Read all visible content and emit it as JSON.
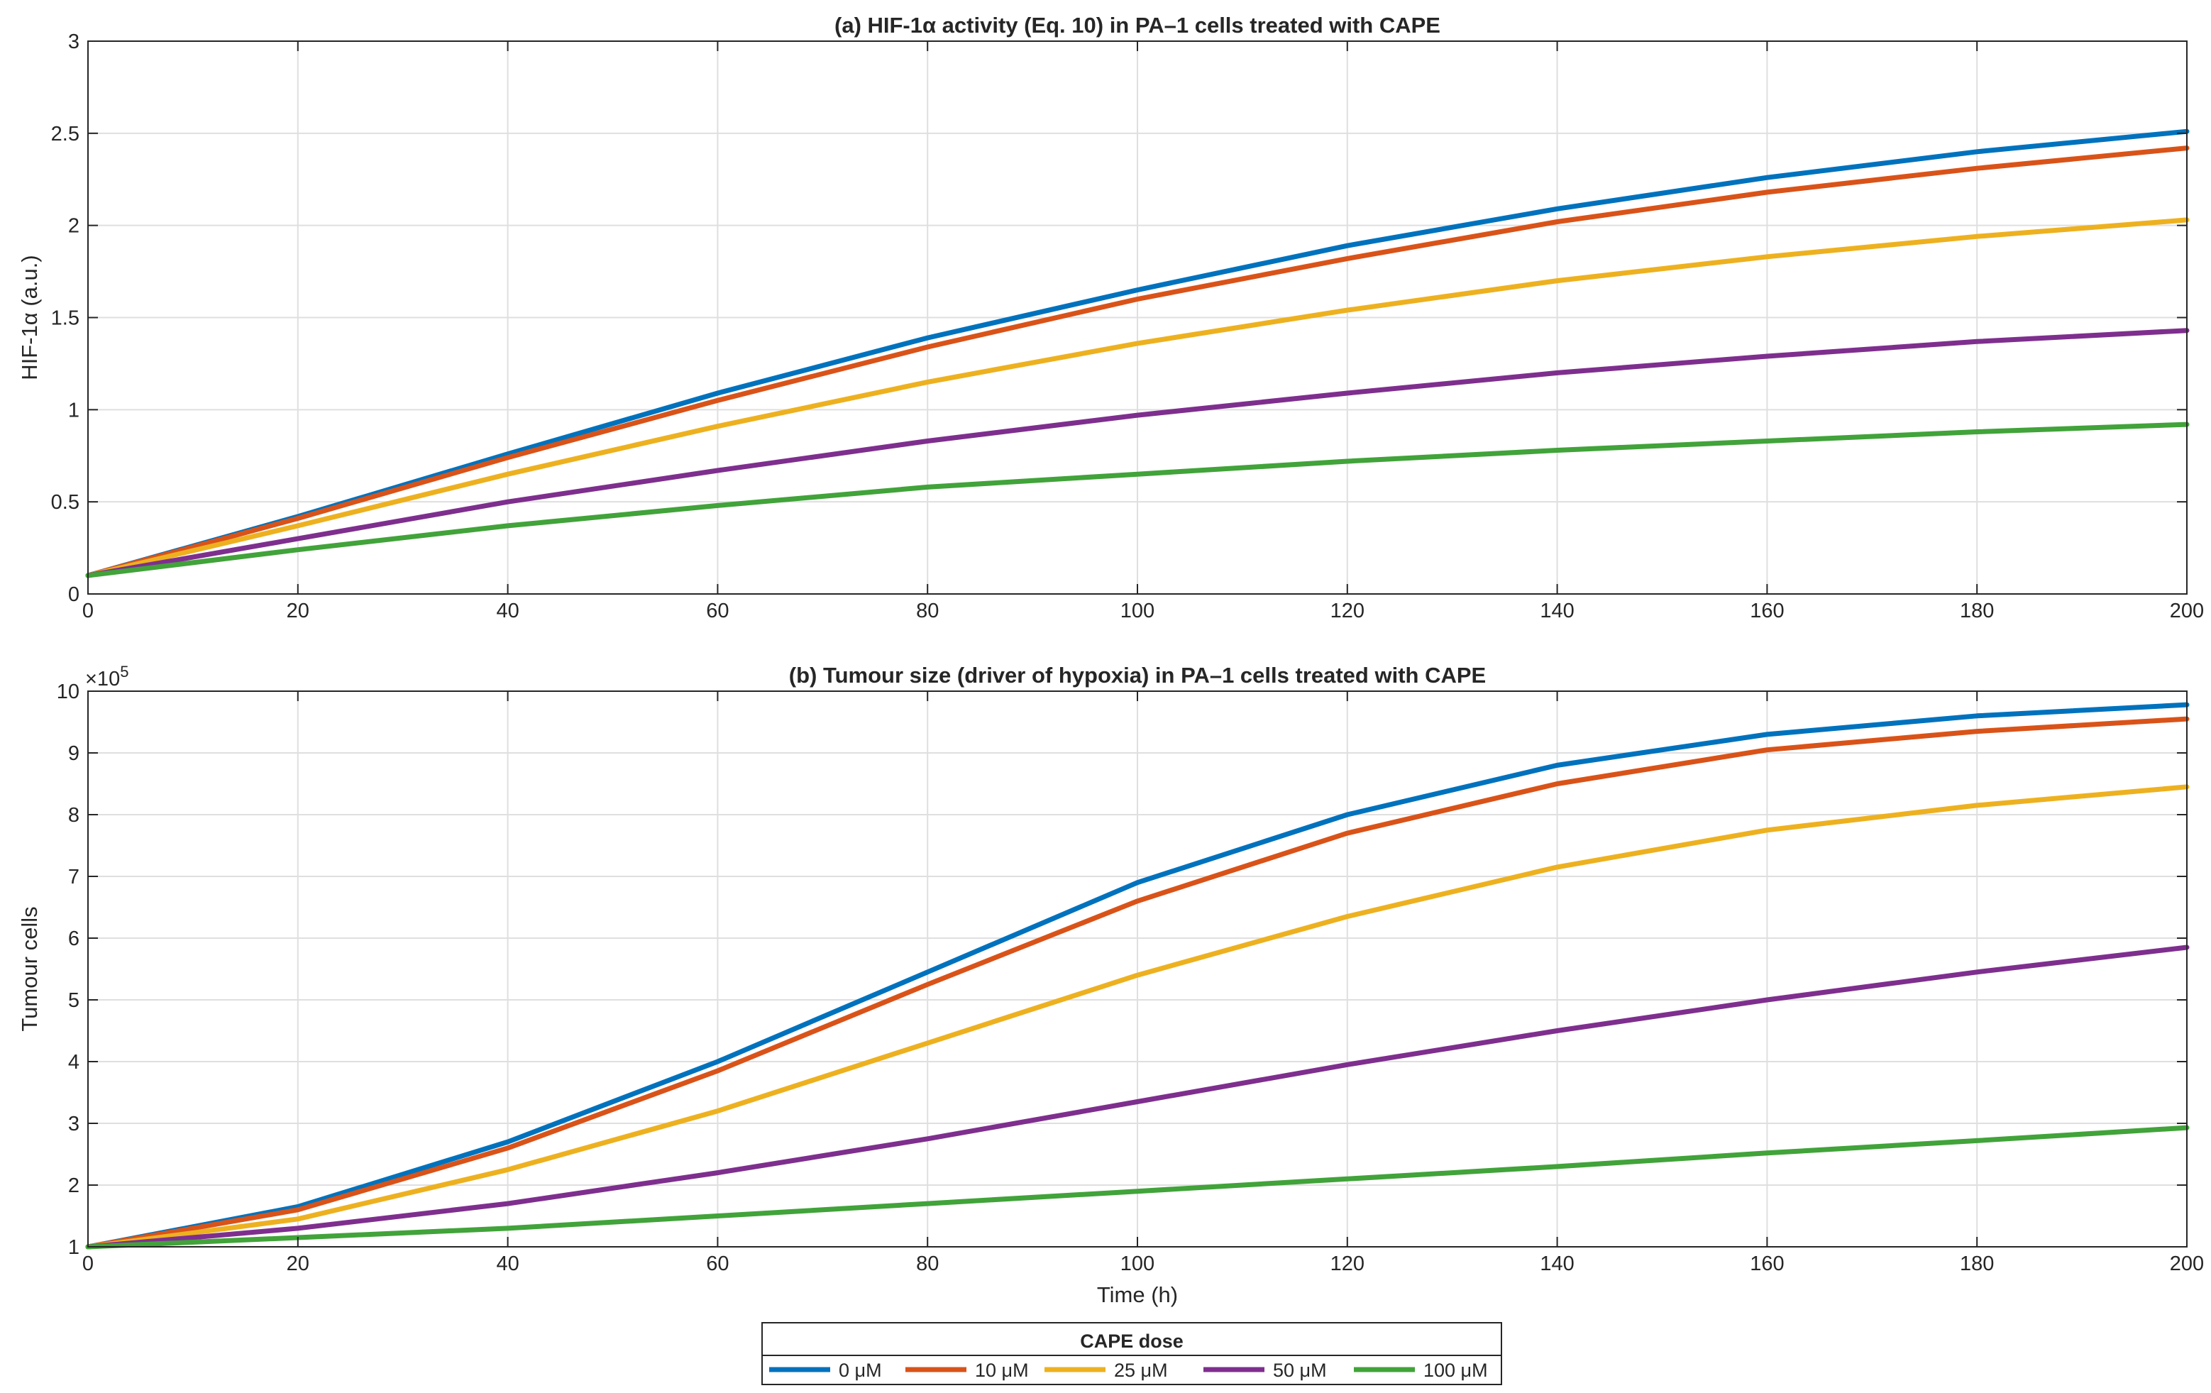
{
  "chart_data": [
    {
      "type": "line",
      "title": "(a) HIF-1α activity (Eq. 10)  in PA–1 cells treated with CAPE",
      "xlabel": "",
      "ylabel": "HIF-1α (a.u.)",
      "xlim": [
        0,
        200
      ],
      "ylim": [
        0,
        3
      ],
      "xticks": [
        0,
        20,
        40,
        60,
        80,
        100,
        120,
        140,
        160,
        180,
        200
      ],
      "xtick_labels": [
        "0",
        "20",
        "40",
        "60",
        "80",
        "100",
        "120",
        "140",
        "160",
        "180",
        "200"
      ],
      "yticks": [
        0,
        0.5,
        1,
        1.5,
        2,
        2.5,
        3
      ],
      "ytick_labels": [
        "0",
        "0.5",
        "1",
        "1.5",
        "2",
        "2.5",
        "3"
      ],
      "grid": true,
      "x": [
        0,
        20,
        40,
        60,
        80,
        100,
        120,
        140,
        160,
        180,
        200
      ],
      "series": [
        {
          "name": "0 μM",
          "color": "#0072BD",
          "values": [
            0.1,
            0.42,
            0.76,
            1.09,
            1.39,
            1.65,
            1.89,
            2.09,
            2.26,
            2.4,
            2.51
          ]
        },
        {
          "name": "10 μM",
          "color": "#D95319",
          "values": [
            0.1,
            0.41,
            0.74,
            1.05,
            1.34,
            1.6,
            1.82,
            2.02,
            2.18,
            2.31,
            2.42
          ]
        },
        {
          "name": "25 μM",
          "color": "#EDB120",
          "values": [
            0.1,
            0.37,
            0.65,
            0.91,
            1.15,
            1.36,
            1.54,
            1.7,
            1.83,
            1.94,
            2.03
          ]
        },
        {
          "name": "50 μM",
          "color": "#7E2F8E",
          "values": [
            0.1,
            0.3,
            0.5,
            0.67,
            0.83,
            0.97,
            1.09,
            1.2,
            1.29,
            1.37,
            1.43
          ]
        },
        {
          "name": "100 μM",
          "color": "#41A33A",
          "values": [
            0.1,
            0.24,
            0.37,
            0.48,
            0.58,
            0.65,
            0.72,
            0.78,
            0.83,
            0.88,
            0.92
          ]
        }
      ]
    },
    {
      "type": "line",
      "title": "(b) Tumour size (driver of hypoxia)  in PA–1 cells treated with CAPE",
      "xlabel": "Time (h)",
      "ylabel": "Tumour cells",
      "y_multiplier_base": "×10",
      "y_multiplier_exp": "5",
      "xlim": [
        0,
        200
      ],
      "ylim": [
        1,
        10
      ],
      "xticks": [
        0,
        20,
        40,
        60,
        80,
        100,
        120,
        140,
        160,
        180,
        200
      ],
      "xtick_labels": [
        "0",
        "20",
        "40",
        "60",
        "80",
        "100",
        "120",
        "140",
        "160",
        "180",
        "200"
      ],
      "yticks": [
        1,
        2,
        3,
        4,
        5,
        6,
        7,
        8,
        9,
        10
      ],
      "ytick_labels": [
        "1",
        "2",
        "3",
        "4",
        "5",
        "6",
        "7",
        "8",
        "9",
        "10"
      ],
      "grid": true,
      "x": [
        0,
        20,
        40,
        60,
        80,
        100,
        120,
        140,
        160,
        180,
        200
      ],
      "series": [
        {
          "name": "0 μM",
          "color": "#0072BD",
          "values": [
            1.0,
            1.65,
            2.7,
            4.0,
            5.45,
            6.9,
            8.0,
            8.8,
            9.3,
            9.6,
            9.78
          ]
        },
        {
          "name": "10 μM",
          "color": "#D95319",
          "values": [
            1.0,
            1.6,
            2.6,
            3.85,
            5.25,
            6.6,
            7.7,
            8.5,
            9.05,
            9.35,
            9.55
          ]
        },
        {
          "name": "25 μM",
          "color": "#EDB120",
          "values": [
            1.0,
            1.45,
            2.25,
            3.2,
            4.3,
            5.4,
            6.35,
            7.15,
            7.75,
            8.15,
            8.45
          ]
        },
        {
          "name": "50 μM",
          "color": "#7E2F8E",
          "values": [
            1.0,
            1.3,
            1.7,
            2.2,
            2.75,
            3.35,
            3.95,
            4.5,
            5.0,
            5.45,
            5.85
          ]
        },
        {
          "name": "100 μM",
          "color": "#41A33A",
          "values": [
            1.0,
            1.15,
            1.3,
            1.5,
            1.7,
            1.9,
            2.1,
            2.3,
            2.52,
            2.72,
            2.93
          ]
        }
      ]
    }
  ],
  "legend": {
    "title": "CAPE dose",
    "placement": "bottom-center",
    "items": [
      {
        "label": "0 μM",
        "color": "#0072BD"
      },
      {
        "label": "10 μM",
        "color": "#D95319"
      },
      {
        "label": "25 μM",
        "color": "#EDB120"
      },
      {
        "label": "50 μM",
        "color": "#7E2F8E"
      },
      {
        "label": "100 μM",
        "color": "#41A33A"
      }
    ]
  }
}
